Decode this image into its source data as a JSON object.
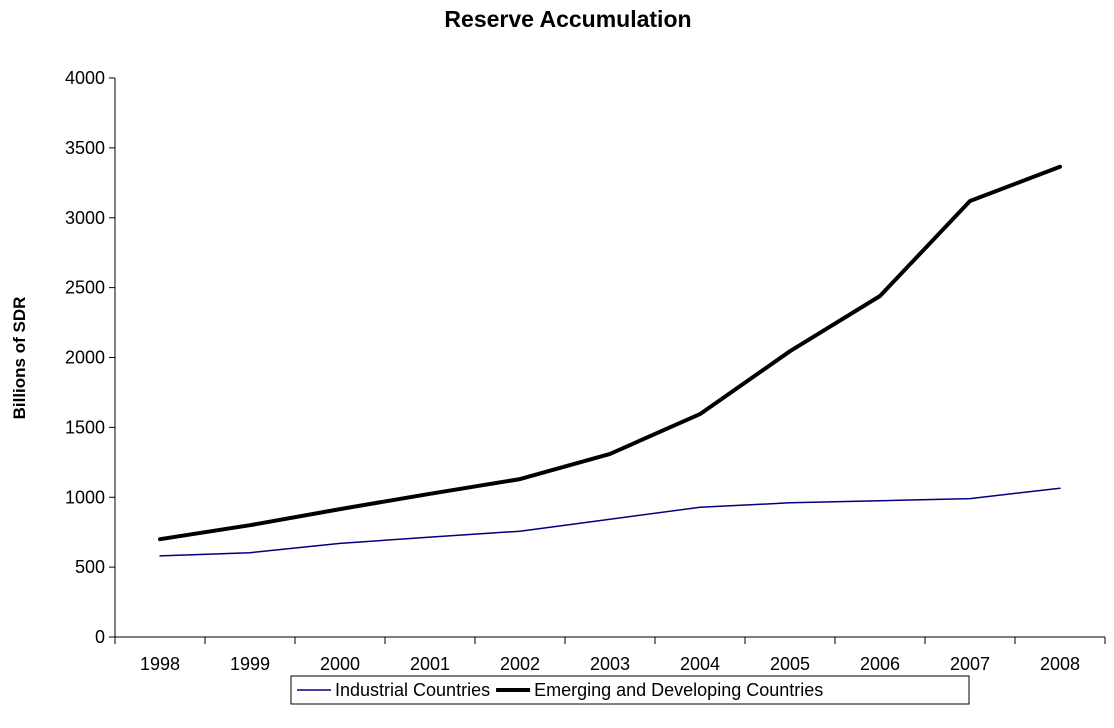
{
  "chart_data": {
    "type": "line",
    "title": "Reserve Accumulation",
    "xlabel": "",
    "ylabel": "Billions of SDR",
    "categories": [
      "1998",
      "1999",
      "2000",
      "2001",
      "2002",
      "2003",
      "2004",
      "2005",
      "2006",
      "2007",
      "2008"
    ],
    "ylim": [
      0,
      4000
    ],
    "yticks": [
      0,
      500,
      1000,
      1500,
      2000,
      2500,
      3000,
      3500,
      4000
    ],
    "grid": false,
    "legend": "bottom",
    "series": [
      {
        "name": "Industrial Countries",
        "color": "#000080",
        "values": [
          580,
          603,
          670,
          715,
          757,
          843,
          928,
          960,
          975,
          990,
          1065
        ]
      },
      {
        "name": "Emerging and Developing Countries",
        "color": "#000000",
        "values": [
          700,
          800,
          915,
          1025,
          1130,
          1310,
          1595,
          2045,
          2440,
          3120,
          3365
        ]
      }
    ]
  }
}
